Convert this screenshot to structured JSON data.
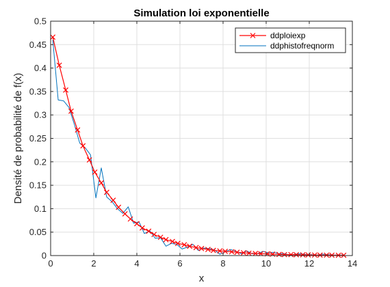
{
  "chart_data": {
    "type": "line",
    "title": "Simulation loi exponentielle",
    "xlabel": "x",
    "ylabel": "Densité de probabilité de f(x)",
    "xlim": [
      0,
      14
    ],
    "ylim": [
      0,
      0.5
    ],
    "xticks": [
      "0",
      "2",
      "4",
      "6",
      "8",
      "10",
      "12",
      "14"
    ],
    "yticks": [
      "0",
      "0.05",
      "0.1",
      "0.15",
      "0.2",
      "0.25",
      "0.3",
      "0.35",
      "0.4",
      "0.45",
      "0.5"
    ],
    "grid": true,
    "legend_position": "top-right",
    "series": [
      {
        "name": "ddploiexp",
        "color": "#ff0000",
        "marker": "x",
        "x": [
          0.1,
          0.4,
          0.7,
          0.95,
          1.25,
          1.5,
          1.8,
          2.05,
          2.35,
          2.6,
          2.9,
          3.15,
          3.45,
          3.7,
          4.0,
          4.25,
          4.55,
          4.8,
          5.1,
          5.35,
          5.65,
          5.9,
          6.2,
          6.45,
          6.75,
          7.0,
          7.3,
          7.55,
          7.85,
          8.1,
          8.4,
          8.65,
          8.95,
          9.2,
          9.5,
          9.75,
          10.05,
          10.3,
          10.6,
          10.85,
          11.15,
          11.4,
          11.7,
          11.95,
          12.25,
          12.5,
          12.8,
          13.05,
          13.35,
          13.6
        ],
        "y": [
          0.466,
          0.406,
          0.353,
          0.308,
          0.268,
          0.234,
          0.204,
          0.178,
          0.155,
          0.135,
          0.118,
          0.103,
          0.089,
          0.078,
          0.068,
          0.059,
          0.052,
          0.045,
          0.039,
          0.034,
          0.03,
          0.026,
          0.023,
          0.02,
          0.017,
          0.015,
          0.013,
          0.011,
          0.01,
          0.009,
          0.008,
          0.007,
          0.006,
          0.005,
          0.0045,
          0.004,
          0.0035,
          0.003,
          0.0025,
          0.002,
          0.002,
          0.0018,
          0.0015,
          0.0013,
          0.0011,
          0.001,
          0.0009,
          0.0008,
          0.0007,
          0.0006
        ]
      },
      {
        "name": "ddphistofreqnorm",
        "color": "#0072bd",
        "marker": "none",
        "x": [
          0.1,
          0.35,
          0.6,
          0.85,
          1.1,
          1.35,
          1.6,
          1.85,
          2.1,
          2.35,
          2.6,
          2.85,
          3.1,
          3.35,
          3.6,
          3.85,
          4.1,
          4.35,
          4.6,
          4.85,
          5.1,
          5.35,
          5.6,
          5.85,
          6.1,
          6.35,
          6.6,
          6.85,
          7.1,
          7.35,
          7.6,
          7.85,
          8.1,
          8.35,
          8.6,
          8.85,
          9.1,
          9.35,
          9.6,
          9.85,
          10.1,
          10.35,
          10.6,
          10.85,
          11.1,
          11.35,
          11.6,
          11.85,
          12.1,
          12.35,
          12.6,
          12.85,
          13.1,
          13.35,
          13.6
        ],
        "y": [
          0.46,
          0.332,
          0.33,
          0.316,
          0.28,
          0.24,
          0.23,
          0.215,
          0.123,
          0.187,
          0.125,
          0.115,
          0.1,
          0.09,
          0.104,
          0.069,
          0.072,
          0.047,
          0.053,
          0.037,
          0.038,
          0.02,
          0.026,
          0.024,
          0.014,
          0.018,
          0.024,
          0.011,
          0.016,
          0.015,
          0.012,
          0.003,
          0.008,
          0.013,
          0.009,
          0.004,
          0.01,
          0.004,
          0.004,
          0.009,
          0.006,
          0.007,
          0.004,
          0.004,
          0.001,
          0.003,
          0.004,
          0.002,
          0.002,
          0.001,
          0.003,
          0.002,
          0.001,
          0.001,
          0.001
        ]
      }
    ]
  }
}
